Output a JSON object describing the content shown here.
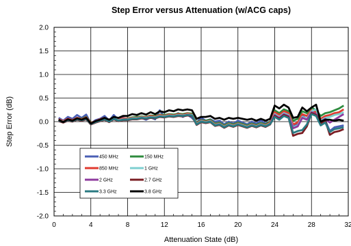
{
  "chart_data": {
    "type": "line",
    "title": "Step Error versus Attenuation (w/ACG caps)",
    "xlabel": "Attenuation State (dB)",
    "ylabel": "Step Error (dB)",
    "xlim": [
      0,
      32
    ],
    "ylim": [
      -2.0,
      2.0
    ],
    "x_ticks": [
      "0",
      "4",
      "8",
      "12",
      "16",
      "20",
      "24",
      "28",
      "32"
    ],
    "y_ticks": [
      "2.0",
      "1.5",
      "1.0",
      "0.5",
      "0.0",
      "-0.5",
      "-1.0",
      "-1.5",
      "-2.0"
    ],
    "grid": true,
    "legend_position": "lower-left",
    "series": [
      {
        "name": "450 MHz",
        "color": "#4a5fb5",
        "x": [
          0.5,
          1,
          1.5,
          2,
          2.5,
          3,
          3.5,
          4,
          4.5,
          5,
          5.5,
          6,
          6.5,
          7,
          7.5,
          8,
          8.5,
          9,
          9.5,
          10,
          10.5,
          11,
          11.5,
          12,
          12.5,
          13,
          13.5,
          14,
          14.5,
          15,
          15.5,
          16,
          16.5,
          17,
          17.5,
          18,
          18.5,
          19,
          19.5,
          20,
          20.5,
          21,
          21.5,
          22,
          22.5,
          23,
          23.5,
          24,
          24.5,
          25,
          25.5,
          26,
          26.5,
          27,
          27.5,
          28,
          28.5,
          29,
          29.5,
          30,
          30.5,
          31,
          31.5
        ],
        "y": [
          0.08,
          0.02,
          0.1,
          0.06,
          0.14,
          0.08,
          0.15,
          -0.04,
          0.03,
          0.06,
          0.12,
          0.02,
          0.14,
          0.04,
          0.08,
          0.05,
          0.09,
          0.06,
          0.08,
          0.04,
          0.09,
          0.05,
          0.24,
          0.1,
          0.16,
          0.12,
          0.18,
          0.1,
          0.15,
          0.08,
          -0.02,
          0.08,
          0.02,
          0.05,
          0.0,
          0.02,
          -0.06,
          0.0,
          -0.04,
          0.02,
          -0.02,
          -0.06,
          0.0,
          -0.04,
          0.02,
          -0.04,
          0.0,
          0.18,
          0.12,
          0.18,
          0.14,
          -0.1,
          -0.06,
          0.12,
          0.06,
          0.18,
          0.14,
          -0.04,
          0.02,
          -0.2,
          -0.12,
          -0.1,
          -0.08
        ]
      },
      {
        "name": "150 MHz",
        "color": "#2e8b3e",
        "x": [
          0.5,
          1,
          1.5,
          2,
          2.5,
          3,
          3.5,
          4,
          4.5,
          5,
          5.5,
          6,
          6.5,
          7,
          7.5,
          8,
          8.5,
          9,
          9.5,
          10,
          10.5,
          11,
          11.5,
          12,
          12.5,
          13,
          13.5,
          14,
          14.5,
          15,
          15.5,
          16,
          16.5,
          17,
          17.5,
          18,
          18.5,
          19,
          19.5,
          20,
          20.5,
          21,
          21.5,
          22,
          22.5,
          23,
          23.5,
          24,
          24.5,
          25,
          25.5,
          26,
          26.5,
          27,
          27.5,
          28,
          28.5,
          29,
          29.5,
          30,
          30.5,
          31,
          31.5
        ],
        "y": [
          0.04,
          0.0,
          0.05,
          0.03,
          0.08,
          0.06,
          0.1,
          -0.02,
          0.0,
          0.04,
          0.07,
          0.02,
          0.08,
          0.04,
          0.06,
          0.07,
          0.09,
          0.1,
          0.11,
          0.1,
          0.13,
          0.12,
          0.15,
          0.14,
          0.16,
          0.15,
          0.17,
          0.16,
          0.18,
          0.17,
          -0.02,
          0.03,
          0.02,
          0.04,
          -0.04,
          -0.02,
          -0.08,
          -0.03,
          -0.06,
          -0.02,
          -0.05,
          -0.08,
          -0.04,
          -0.07,
          -0.03,
          -0.06,
          0.0,
          0.24,
          0.18,
          0.26,
          0.22,
          0.02,
          0.06,
          0.22,
          0.18,
          0.3,
          0.24,
          0.12,
          0.18,
          0.2,
          0.24,
          0.28,
          0.34
        ]
      },
      {
        "name": "850 MHz",
        "color": "#e03a2f",
        "x": [
          0.5,
          1,
          1.5,
          2,
          2.5,
          3,
          3.5,
          4,
          4.5,
          5,
          5.5,
          6,
          6.5,
          7,
          7.5,
          8,
          8.5,
          9,
          9.5,
          10,
          10.5,
          11,
          11.5,
          12,
          12.5,
          13,
          13.5,
          14,
          14.5,
          15,
          15.5,
          16,
          16.5,
          17,
          17.5,
          18,
          18.5,
          19,
          19.5,
          20,
          20.5,
          21,
          21.5,
          22,
          22.5,
          23,
          23.5,
          24,
          24.5,
          25,
          25.5,
          26,
          26.5,
          27,
          27.5,
          28,
          28.5,
          29,
          29.5,
          30,
          30.5,
          31,
          31.5
        ],
        "y": [
          0.05,
          0.01,
          0.06,
          0.03,
          0.08,
          0.05,
          0.09,
          -0.03,
          0.01,
          0.05,
          0.08,
          0.02,
          0.09,
          0.04,
          0.07,
          0.06,
          0.08,
          0.08,
          0.1,
          0.09,
          0.12,
          0.1,
          0.14,
          0.12,
          0.15,
          0.13,
          0.16,
          0.14,
          0.17,
          0.15,
          -0.04,
          0.02,
          0.0,
          0.02,
          -0.06,
          -0.04,
          -0.1,
          -0.05,
          -0.08,
          -0.04,
          -0.07,
          -0.1,
          -0.06,
          -0.09,
          -0.05,
          -0.08,
          -0.02,
          0.2,
          0.14,
          0.22,
          0.18,
          -0.06,
          -0.02,
          0.16,
          0.12,
          0.24,
          0.2,
          0.06,
          0.12,
          0.14,
          0.18,
          0.2,
          0.26
        ]
      },
      {
        "name": "1 GHz",
        "color": "#7ecfd0",
        "x": [
          0.5,
          1,
          1.5,
          2,
          2.5,
          3,
          3.5,
          4,
          4.5,
          5,
          5.5,
          6,
          6.5,
          7,
          7.5,
          8,
          8.5,
          9,
          9.5,
          10,
          10.5,
          11,
          11.5,
          12,
          12.5,
          13,
          13.5,
          14,
          14.5,
          15,
          15.5,
          16,
          16.5,
          17,
          17.5,
          18,
          18.5,
          19,
          19.5,
          20,
          20.5,
          21,
          21.5,
          22,
          22.5,
          23,
          23.5,
          24,
          24.5,
          25,
          25.5,
          26,
          26.5,
          27,
          27.5,
          28,
          28.5,
          29,
          29.5,
          30,
          30.5,
          31,
          31.5
        ],
        "y": [
          0.03,
          0.0,
          0.04,
          0.02,
          0.06,
          0.04,
          0.07,
          -0.04,
          0.0,
          0.03,
          0.06,
          0.01,
          0.07,
          0.03,
          0.05,
          0.05,
          0.07,
          0.07,
          0.09,
          0.08,
          0.1,
          0.09,
          0.12,
          0.11,
          0.13,
          0.12,
          0.14,
          0.13,
          0.15,
          0.14,
          -0.05,
          0.01,
          -0.01,
          0.01,
          -0.07,
          -0.05,
          -0.11,
          -0.06,
          -0.09,
          -0.05,
          -0.08,
          -0.11,
          -0.07,
          -0.1,
          -0.06,
          -0.09,
          -0.04,
          0.16,
          0.1,
          0.18,
          0.14,
          -0.12,
          -0.08,
          0.1,
          0.06,
          0.22,
          0.26,
          0.02,
          0.08,
          0.1,
          0.14,
          0.16,
          0.2
        ]
      },
      {
        "name": "2 GHz",
        "color": "#8e3a9e",
        "x": [
          0.5,
          1,
          1.5,
          2,
          2.5,
          3,
          3.5,
          4,
          4.5,
          5,
          5.5,
          6,
          6.5,
          7,
          7.5,
          8,
          8.5,
          9,
          9.5,
          10,
          10.5,
          11,
          11.5,
          12,
          12.5,
          13,
          13.5,
          14,
          14.5,
          15,
          15.5,
          16,
          16.5,
          17,
          17.5,
          18,
          18.5,
          19,
          19.5,
          20,
          20.5,
          21,
          21.5,
          22,
          22.5,
          23,
          23.5,
          24,
          24.5,
          25,
          25.5,
          26,
          26.5,
          27,
          27.5,
          28,
          28.5,
          29,
          29.5,
          30,
          30.5,
          31,
          31.5
        ],
        "y": [
          0.02,
          -0.01,
          0.03,
          0.01,
          0.05,
          0.03,
          0.06,
          -0.05,
          -0.01,
          0.02,
          0.05,
          0.0,
          0.06,
          0.02,
          0.04,
          0.04,
          0.06,
          0.06,
          0.08,
          0.07,
          0.09,
          0.08,
          0.11,
          0.1,
          0.12,
          0.11,
          0.13,
          0.12,
          0.14,
          0.13,
          -0.06,
          0.0,
          -0.02,
          0.0,
          -0.08,
          -0.06,
          -0.12,
          -0.07,
          -0.1,
          -0.06,
          -0.09,
          -0.12,
          -0.08,
          -0.11,
          -0.07,
          -0.1,
          -0.05,
          0.14,
          0.08,
          0.16,
          0.12,
          -0.14,
          -0.1,
          0.08,
          0.04,
          0.2,
          0.16,
          0.0,
          0.06,
          -0.02,
          0.04,
          0.1,
          0.16
        ]
      },
      {
        "name": "2.7 GHz",
        "color": "#7a1c22",
        "x": [
          0.5,
          1,
          1.5,
          2,
          2.5,
          3,
          3.5,
          4,
          4.5,
          5,
          5.5,
          6,
          6.5,
          7,
          7.5,
          8,
          8.5,
          9,
          9.5,
          10,
          10.5,
          11,
          11.5,
          12,
          12.5,
          13,
          13.5,
          14,
          14.5,
          15,
          15.5,
          16,
          16.5,
          17,
          17.5,
          18,
          18.5,
          19,
          19.5,
          20,
          20.5,
          21,
          21.5,
          22,
          22.5,
          23,
          23.5,
          24,
          24.5,
          25,
          25.5,
          26,
          26.5,
          27,
          27.5,
          28,
          28.5,
          29,
          29.5,
          30,
          30.5,
          31,
          31.5
        ],
        "y": [
          0.01,
          -0.02,
          0.02,
          0.0,
          0.04,
          0.02,
          0.05,
          -0.06,
          -0.02,
          0.01,
          0.04,
          -0.01,
          0.05,
          0.01,
          0.03,
          0.03,
          0.05,
          0.05,
          0.07,
          0.06,
          0.08,
          0.07,
          0.1,
          0.09,
          0.11,
          0.1,
          0.12,
          0.11,
          0.13,
          0.12,
          -0.07,
          -0.01,
          -0.03,
          -0.01,
          -0.09,
          -0.07,
          -0.13,
          -0.08,
          -0.11,
          -0.07,
          -0.1,
          -0.13,
          -0.09,
          -0.12,
          -0.08,
          -0.11,
          -0.06,
          0.12,
          0.06,
          0.14,
          0.1,
          -0.3,
          -0.26,
          -0.24,
          -0.1,
          0.18,
          0.14,
          -0.04,
          0.02,
          -0.28,
          -0.22,
          -0.2,
          -0.16
        ]
      },
      {
        "name": "3.3 GHz",
        "color": "#2a7a82",
        "x": [
          0.5,
          1,
          1.5,
          2,
          2.5,
          3,
          3.5,
          4,
          4.5,
          5,
          5.5,
          6,
          6.5,
          7,
          7.5,
          8,
          8.5,
          9,
          9.5,
          10,
          10.5,
          11,
          11.5,
          12,
          12.5,
          13,
          13.5,
          14,
          14.5,
          15,
          15.5,
          16,
          16.5,
          17,
          17.5,
          18,
          18.5,
          19,
          19.5,
          20,
          20.5,
          21,
          21.5,
          22,
          22.5,
          23,
          23.5,
          24,
          24.5,
          25,
          25.5,
          26,
          26.5,
          27,
          27.5,
          28,
          28.5,
          29,
          29.5,
          30,
          30.5,
          31,
          31.5
        ],
        "y": [
          0.02,
          -0.01,
          0.03,
          0.01,
          0.05,
          0.03,
          0.06,
          -0.05,
          -0.01,
          0.02,
          0.05,
          0.0,
          0.06,
          0.02,
          0.04,
          0.04,
          0.06,
          0.06,
          0.08,
          0.07,
          0.09,
          0.08,
          0.11,
          0.1,
          0.12,
          0.11,
          0.13,
          0.12,
          0.14,
          0.13,
          -0.06,
          0.0,
          -0.02,
          0.0,
          -0.08,
          -0.06,
          -0.12,
          -0.07,
          -0.1,
          -0.06,
          -0.09,
          -0.12,
          -0.08,
          -0.11,
          -0.07,
          -0.1,
          -0.05,
          0.1,
          0.04,
          0.12,
          0.08,
          -0.24,
          -0.2,
          -0.18,
          -0.06,
          0.16,
          0.12,
          -0.08,
          -0.02,
          -0.22,
          -0.16,
          -0.14,
          -0.12
        ]
      },
      {
        "name": "3.8 GHz",
        "color": "#000000",
        "x": [
          0.5,
          1,
          1.5,
          2,
          2.5,
          3,
          3.5,
          4,
          4.5,
          5,
          5.5,
          6,
          6.5,
          7,
          7.5,
          8,
          8.5,
          9,
          9.5,
          10,
          10.5,
          11,
          11.5,
          12,
          12.5,
          13,
          13.5,
          14,
          14.5,
          15,
          15.5,
          16,
          16.5,
          17,
          17.5,
          18,
          18.5,
          19,
          19.5,
          20,
          20.5,
          21,
          21.5,
          22,
          22.5,
          23,
          23.5,
          24,
          24.5,
          25,
          25.5,
          26,
          26.5,
          27,
          27.5,
          28,
          28.5,
          29,
          29.5,
          30,
          30.5,
          31,
          31.5
        ],
        "y": [
          0.04,
          -0.01,
          0.05,
          0.02,
          0.07,
          0.04,
          0.08,
          -0.04,
          0.01,
          0.04,
          0.08,
          0.04,
          0.1,
          0.08,
          0.12,
          0.12,
          0.16,
          0.14,
          0.18,
          0.15,
          0.2,
          0.16,
          0.22,
          0.2,
          0.24,
          0.22,
          0.26,
          0.24,
          0.26,
          0.24,
          0.06,
          0.1,
          0.1,
          0.12,
          0.06,
          0.08,
          0.04,
          0.08,
          0.06,
          0.08,
          0.06,
          0.04,
          0.06,
          0.02,
          0.06,
          0.02,
          0.06,
          0.34,
          0.28,
          0.36,
          0.3,
          0.08,
          0.1,
          0.3,
          0.22,
          0.3,
          0.36,
          0.0,
          0.04,
          0.04,
          0.02,
          0.04,
          0.02
        ]
      }
    ]
  }
}
